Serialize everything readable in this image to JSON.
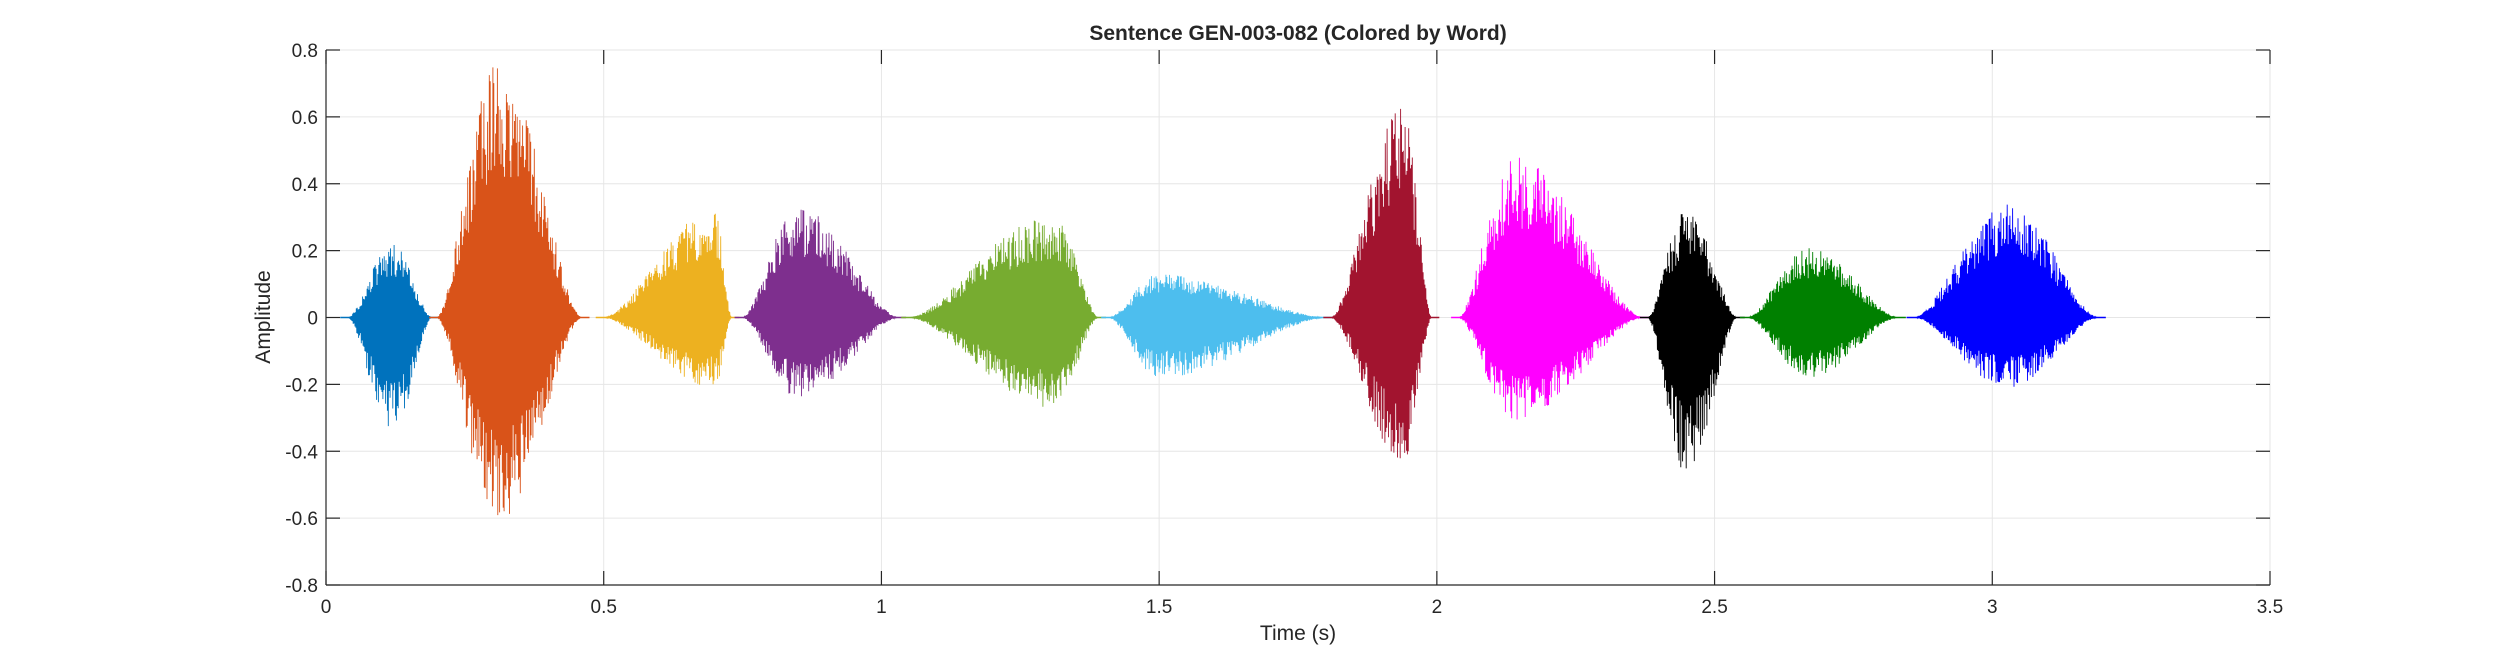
{
  "chart_data": {
    "type": "line",
    "title": "Sentence GEN-003-082 (Colored by Word)",
    "xlabel": "Time (s)",
    "ylabel": "Amplitude",
    "xlim": [
      0,
      3.5
    ],
    "ylim": [
      -0.8,
      0.8
    ],
    "xticks": [
      0,
      0.5,
      1,
      1.5,
      2,
      2.5,
      3,
      3.5
    ],
    "xtick_labels": [
      "0",
      "0.5",
      "1",
      "1.5",
      "2",
      "2.5",
      "3",
      "3.5"
    ],
    "yticks": [
      0.8,
      0.6,
      0.4,
      0.2,
      0,
      -0.2,
      -0.4,
      -0.6,
      -0.8
    ],
    "ytick_labels": [
      "0.8",
      "0.6",
      "0.4",
      "0.2",
      "0",
      "-0.2",
      "-0.4",
      "-0.6",
      "-0.8"
    ],
    "grid": true,
    "series": [
      {
        "color": "#0072BD",
        "start": 0.04,
        "end": 0.19,
        "peak_time": 0.12,
        "max": 0.22,
        "min": -0.34
      },
      {
        "color": "#D95319",
        "start": 0.2,
        "end": 0.46,
        "peak_time": 0.31,
        "max": 0.77,
        "min": -0.62
      },
      {
        "color": "#EDB120",
        "start": 0.5,
        "end": 0.73,
        "peak_time": 0.7,
        "max": 0.32,
        "min": -0.21
      },
      {
        "color": "#7E2F8E",
        "start": 0.75,
        "end": 1.03,
        "peak_time": 0.85,
        "max": 0.33,
        "min": -0.24
      },
      {
        "color": "#77AC30",
        "start": 1.05,
        "end": 1.39,
        "peak_time": 1.31,
        "max": 0.31,
        "min": -0.27
      },
      {
        "color": "#4DBEEE",
        "start": 1.41,
        "end": 1.8,
        "peak_time": 1.5,
        "max": 0.13,
        "min": -0.18
      },
      {
        "color": "#A2142F",
        "start": 1.81,
        "end": 1.99,
        "peak_time": 1.94,
        "max": 0.63,
        "min": -0.44
      },
      {
        "color": "#FF00FF",
        "start": 2.04,
        "end": 2.37,
        "peak_time": 2.14,
        "max": 0.48,
        "min": -0.31
      },
      {
        "color": "#000000",
        "start": 2.38,
        "end": 2.54,
        "peak_time": 2.45,
        "max": 0.33,
        "min": -0.47
      },
      {
        "color": "#008000",
        "start": 2.56,
        "end": 2.83,
        "peak_time": 2.67,
        "max": 0.21,
        "min": -0.18
      },
      {
        "color": "#0000FF",
        "start": 2.86,
        "end": 3.19,
        "peak_time": 3.03,
        "max": 0.34,
        "min": -0.21
      }
    ]
  }
}
